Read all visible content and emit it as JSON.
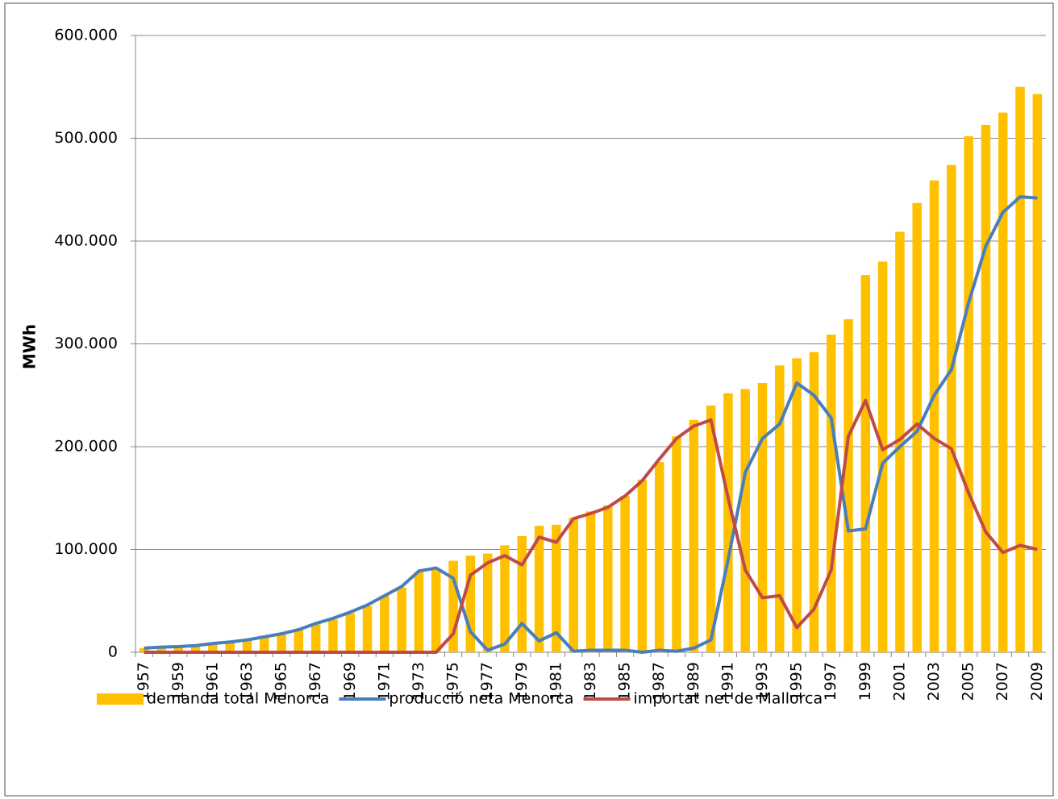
{
  "chart_data": {
    "type": "bar",
    "y_label": "MWh",
    "categories": [
      "1957",
      null,
      "1959",
      null,
      "1961",
      null,
      "1963",
      null,
      "1965",
      null,
      "1967",
      null,
      "1969",
      null,
      "1971",
      null,
      "1973",
      null,
      "1975",
      null,
      "1977",
      null,
      "1979",
      null,
      "1981",
      null,
      "1983",
      null,
      "1985",
      null,
      "1987",
      null,
      "1989",
      null,
      "1991",
      null,
      "1993",
      null,
      "1995",
      null,
      "1997",
      null,
      "1999",
      null,
      "2001",
      null,
      "2003",
      null,
      "2005",
      null,
      "2007",
      null,
      "2009"
    ],
    "series": [
      {
        "name": "demanda total Menorca",
        "type": "bar",
        "color": "#FFC000",
        "values": [
          4000,
          5000,
          5500,
          6500,
          8000,
          10000,
          12000,
          15000,
          18000,
          22000,
          27000,
          32000,
          38000,
          45000,
          55000,
          63000,
          78000,
          80000,
          89000,
          94000,
          96000,
          104000,
          113000,
          123000,
          124000,
          131000,
          137000,
          143000,
          152000,
          168000,
          185000,
          210000,
          226000,
          240000,
          252000,
          256000,
          262000,
          279000,
          286000,
          292000,
          309000,
          324000,
          367000,
          380000,
          409000,
          437000,
          459000,
          474000,
          502000,
          513000,
          525000,
          550000,
          543000
        ]
      },
      {
        "name": "producció neta Menorca",
        "type": "line",
        "color": "#4A7EBB",
        "values": [
          4000,
          5000,
          5500,
          6500,
          8500,
          10000,
          12000,
          15000,
          18000,
          22000,
          28000,
          33000,
          39000,
          46000,
          55000,
          64000,
          79000,
          82000,
          72000,
          20000,
          2000,
          8000,
          28000,
          11000,
          19000,
          1000,
          2000,
          2000,
          2000,
          0,
          2000,
          1000,
          4000,
          12000,
          90000,
          175000,
          208000,
          222000,
          262000,
          250000,
          228000,
          118000,
          120000,
          184000,
          200000,
          215000,
          250000,
          275000,
          340000,
          395000,
          428000,
          443000,
          442000
        ]
      },
      {
        "name": "importat net de Mallorca",
        "type": "line",
        "color": "#BE4B48",
        "values": [
          0,
          0,
          0,
          0,
          0,
          0,
          0,
          0,
          0,
          0,
          0,
          0,
          0,
          0,
          0,
          0,
          0,
          0,
          18000,
          75000,
          87000,
          94000,
          85000,
          112000,
          107000,
          130000,
          135000,
          141000,
          152000,
          167000,
          188000,
          208000,
          220000,
          226000,
          150000,
          80000,
          53000,
          55000,
          24000,
          42000,
          80000,
          210000,
          245000,
          197000,
          207000,
          222000,
          208000,
          198000,
          155000,
          117000,
          97000,
          104000,
          100000
        ]
      }
    ],
    "ylim": [
      0,
      600000
    ],
    "yticks": [
      0,
      {
        "value": 100000,
        "label": "100.000"
      },
      {
        "value": 200000,
        "label": "200.000"
      },
      {
        "value": 300000,
        "label": "300.000"
      },
      {
        "value": 400000,
        "label": "400.000"
      },
      {
        "value": 500000,
        "label": "500.000"
      },
      {
        "value": 600000,
        "label": "600.000"
      }
    ],
    "grid": true
  }
}
